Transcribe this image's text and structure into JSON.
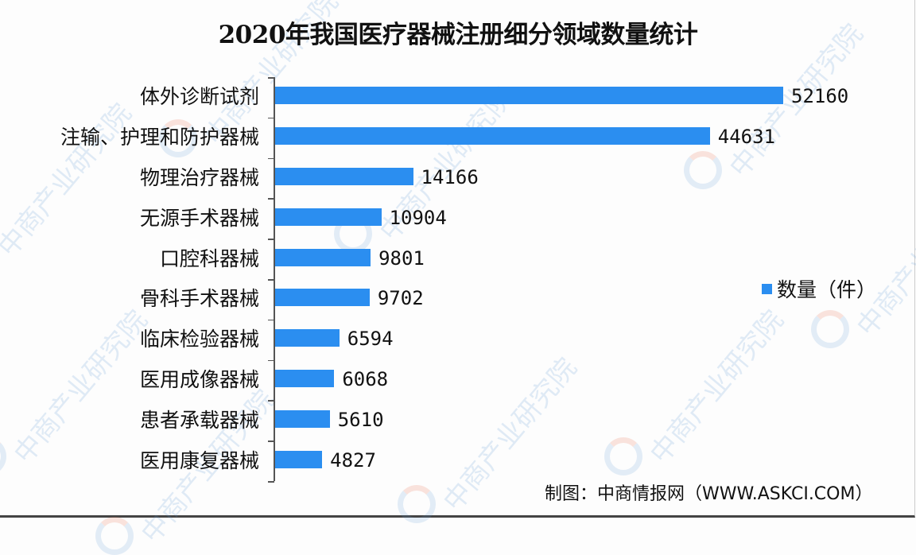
{
  "title": "2020年我国医疗器械注册细分领域数量统计",
  "legend": {
    "label": "数量（件）",
    "color": "#2b8ef0"
  },
  "source": "制图：中商情报网（WWW.ASKCI.COM）",
  "watermark": "中商产业研究院",
  "categories": [
    {
      "label": "体外诊断试剂",
      "value": "52160"
    },
    {
      "label": "注输、护理和防护器械",
      "value": "44631"
    },
    {
      "label": "物理治疗器械",
      "value": "14166"
    },
    {
      "label": "无源手术器械",
      "value": "10904"
    },
    {
      "label": "口腔科器械",
      "value": "9801"
    },
    {
      "label": "骨科手术器械",
      "value": "9702"
    },
    {
      "label": "临床检验器械",
      "value": "6594"
    },
    {
      "label": "医用成像器械",
      "value": "6068"
    },
    {
      "label": "患者承载器械",
      "value": "5610"
    },
    {
      "label": "医用康复器械",
      "value": "4827"
    }
  ],
  "chart_data": {
    "type": "bar",
    "orientation": "horizontal",
    "title": "2020年我国医疗器械注册细分领域数量统计",
    "categories": [
      "体外诊断试剂",
      "注输、护理和防护器械",
      "物理治疗器械",
      "无源手术器械",
      "口腔科器械",
      "骨科手术器械",
      "临床检验器械",
      "医用成像器械",
      "患者承载器械",
      "医用康复器械"
    ],
    "series": [
      {
        "name": "数量（件）",
        "values": [
          52160,
          44631,
          14166,
          10904,
          9801,
          9702,
          6594,
          6068,
          5610,
          4827
        ],
        "color": "#2b8ef0"
      }
    ],
    "xlabel": "",
    "ylabel": "",
    "data_labels": true,
    "grid": false,
    "legend_position": "right",
    "source": "制图：中商情报网（WWW.ASKCI.COM）"
  }
}
